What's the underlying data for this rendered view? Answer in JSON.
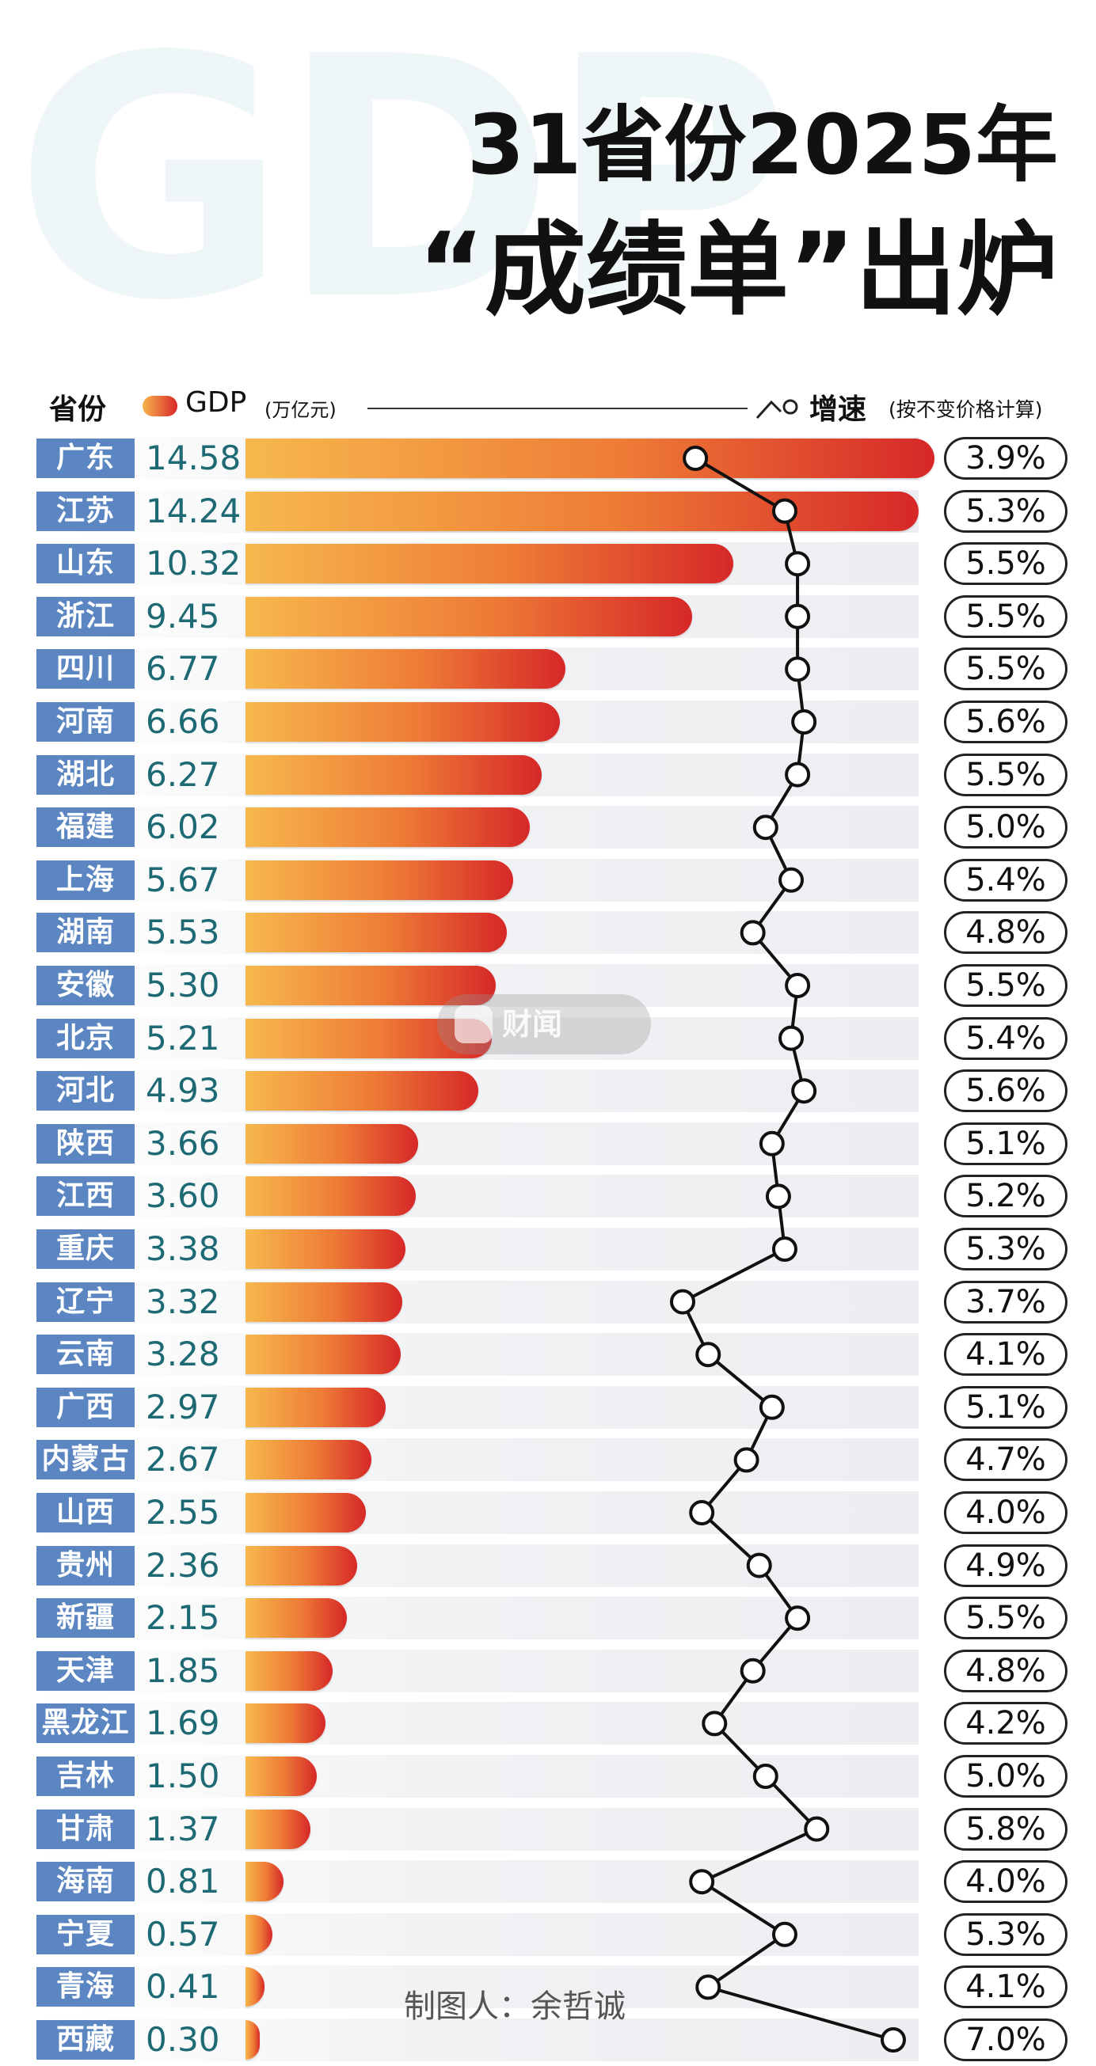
{
  "background_word": "GDP",
  "title_line1": "31省份2025年",
  "title_line2": "“成绩单”出炉",
  "header": {
    "province_label": "省份",
    "gdp_label": "GDP",
    "gdp_unit": "(万亿元)",
    "growth_label": "增速",
    "growth_note": "(按不变价格计算)"
  },
  "watermark_text": "财闻",
  "credit": "制图人：余哲诚",
  "colors": {
    "province_badge": "#5b86c1",
    "gdp_value_text": "#1e6a74",
    "bar_start": "#f7b84d",
    "bar_end": "#d62828"
  },
  "icons": [
    "growth-line-icon",
    "watermark-logo-icon"
  ],
  "chart_data": {
    "type": "bar",
    "orientation": "horizontal",
    "categories": [
      "广东",
      "江苏",
      "山东",
      "浙江",
      "四川",
      "河南",
      "湖北",
      "福建",
      "上海",
      "湖南",
      "安徽",
      "北京",
      "河北",
      "陕西",
      "江西",
      "重庆",
      "辽宁",
      "云南",
      "广西",
      "内蒙古",
      "山西",
      "贵州",
      "新疆",
      "天津",
      "黑龙江",
      "吉林",
      "甘肃",
      "海南",
      "宁夏",
      "青海",
      "西藏"
    ],
    "gdp_labels": [
      "14.58",
      "14.24",
      "10.32",
      "9.45",
      "6.77",
      "6.66",
      "6.27",
      "6.02",
      "5.67",
      "5.53",
      "5.30",
      "5.21",
      "4.93",
      "3.66",
      "3.60",
      "3.38",
      "3.32",
      "3.28",
      "2.97",
      "2.67",
      "2.55",
      "2.36",
      "2.15",
      "1.85",
      "1.69",
      "1.50",
      "1.37",
      "0.81",
      "0.57",
      "0.41",
      "0.30"
    ],
    "gdp_values": [
      14.58,
      14.24,
      10.32,
      9.45,
      6.77,
      6.66,
      6.27,
      6.02,
      5.67,
      5.53,
      5.3,
      5.21,
      4.93,
      3.66,
      3.6,
      3.38,
      3.32,
      3.28,
      2.97,
      2.67,
      2.55,
      2.36,
      2.15,
      1.85,
      1.69,
      1.5,
      1.37,
      0.81,
      0.57,
      0.41,
      0.3
    ],
    "growth_labels": [
      "3.9%",
      "5.3%",
      "5.5%",
      "5.5%",
      "5.5%",
      "5.6%",
      "5.5%",
      "5.0%",
      "5.4%",
      "4.8%",
      "5.5%",
      "5.4%",
      "5.6%",
      "5.1%",
      "5.2%",
      "5.3%",
      "3.7%",
      "4.1%",
      "5.1%",
      "4.7%",
      "4.0%",
      "4.9%",
      "5.5%",
      "4.8%",
      "4.2%",
      "5.0%",
      "5.8%",
      "4.0%",
      "5.3%",
      "4.1%",
      "7.0%"
    ],
    "growth_values": [
      3.9,
      5.3,
      5.5,
      5.5,
      5.5,
      5.6,
      5.5,
      5.0,
      5.4,
      4.8,
      5.5,
      5.4,
      5.6,
      5.1,
      5.2,
      5.3,
      3.7,
      4.1,
      5.1,
      4.7,
      4.0,
      4.9,
      5.5,
      4.8,
      4.2,
      5.0,
      5.8,
      4.0,
      5.3,
      4.1,
      7.0
    ],
    "series": [
      {
        "name": "GDP",
        "unit": "万亿元"
      },
      {
        "name": "增速",
        "unit": "%"
      }
    ]
  }
}
